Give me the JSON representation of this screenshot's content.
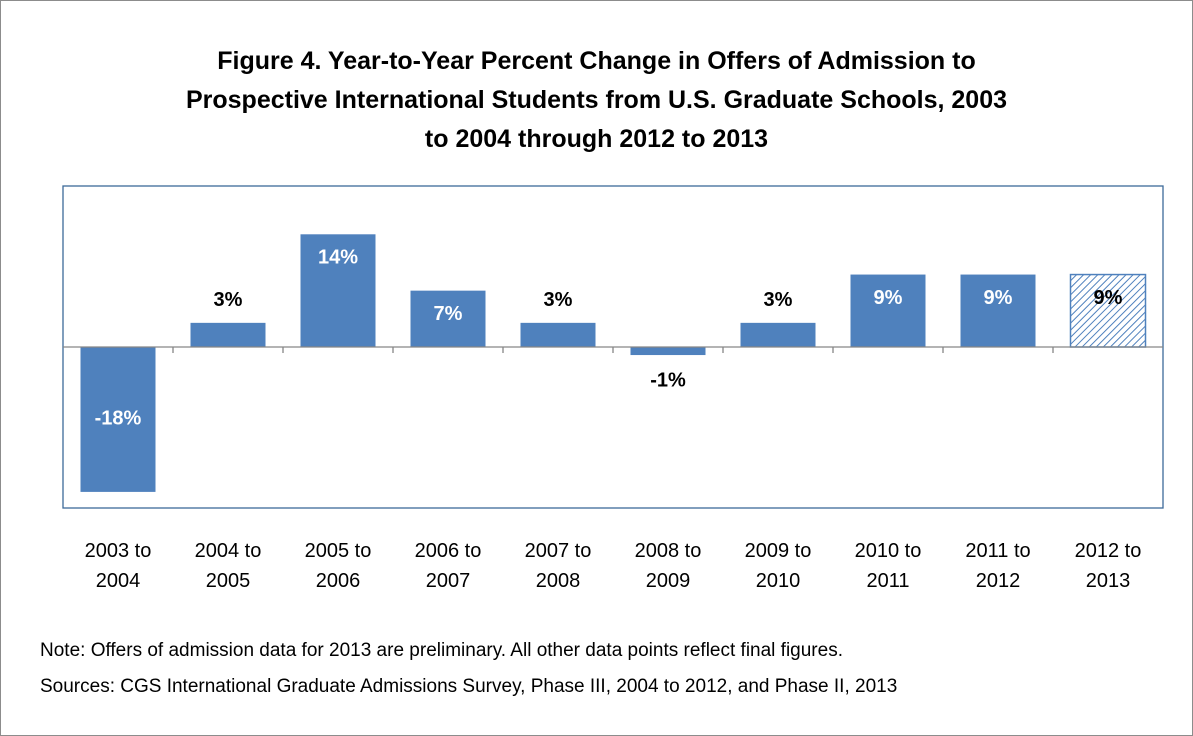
{
  "chart_data": {
    "type": "bar",
    "title": "Figure 4. Year-to-Year Percent Change in Offers of Admission to Prospective International Students from U.S. Graduate Schools, 2003 to 2004 through 2012 to 2013",
    "categories": [
      "2003 to 2004",
      "2004 to 2005",
      "2005 to 2006",
      "2006 to 2007",
      "2007 to 2008",
      "2008 to 2009",
      "2009 to 2010",
      "2010 to 2011",
      "2011 to 2012",
      "2012 to 2013"
    ],
    "values": [
      -18,
      3,
      14,
      7,
      3,
      -1,
      3,
      9,
      9,
      9
    ],
    "value_labels": [
      "-18%",
      "3%",
      "14%",
      "7%",
      "3%",
      "-1%",
      "3%",
      "9%",
      "9%",
      "9%"
    ],
    "hatched": [
      false,
      false,
      false,
      false,
      false,
      false,
      false,
      false,
      false,
      true
    ],
    "color": "#4f81bd",
    "ylim": [
      -20,
      20
    ],
    "note": "Note:  Offers of admission data for 2013 are preliminary. All other data points reflect final figures.",
    "source": "Sources: CGS International Graduate Admissions Survey, Phase III, 2004 to 2012, and Phase II, 2013"
  }
}
